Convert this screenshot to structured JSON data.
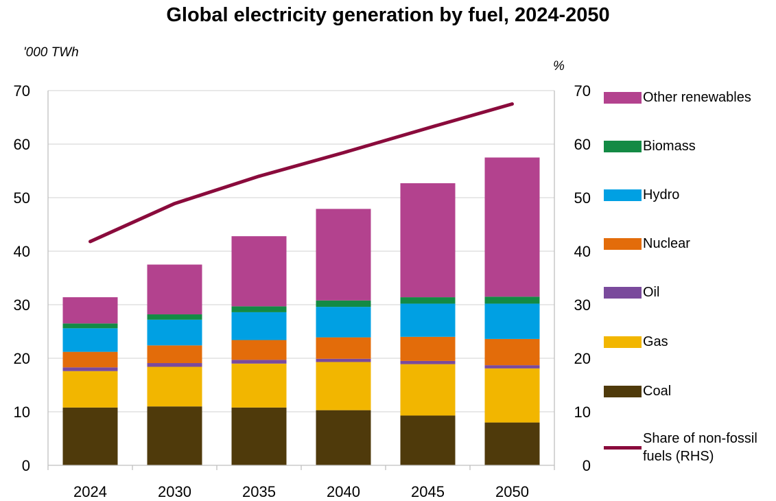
{
  "title": "Global electricity generation by fuel, 2024-2050",
  "unit_left": "'000 TWh",
  "unit_right": "%",
  "chart_data": {
    "type": "bar",
    "stacked": true,
    "categories": [
      "2024",
      "2030",
      "2035",
      "2040",
      "2045",
      "2050"
    ],
    "ylim": [
      0,
      70
    ],
    "yticks": [
      "0",
      "10",
      "20",
      "30",
      "40",
      "50",
      "60",
      "70"
    ],
    "y2lim": [
      0,
      70
    ],
    "y2ticks": [
      "0",
      "10",
      "20",
      "30",
      "40",
      "50",
      "60",
      "70"
    ],
    "ylabel": "'000 TWh",
    "y2label": "%",
    "grid": true,
    "legend_position": "right",
    "series": [
      {
        "name": "Coal",
        "color": "#4f3a0b",
        "values": [
          10.8,
          11.0,
          10.8,
          10.3,
          9.3,
          8.0
        ]
      },
      {
        "name": "Gas",
        "color": "#f2b600",
        "values": [
          6.8,
          7.4,
          8.2,
          9.0,
          9.6,
          10.1
        ]
      },
      {
        "name": "Oil",
        "color": "#7a4a9c",
        "values": [
          0.7,
          0.7,
          0.7,
          0.6,
          0.6,
          0.6
        ]
      },
      {
        "name": "Nuclear",
        "color": "#e36c0a",
        "values": [
          2.9,
          3.3,
          3.7,
          4.0,
          4.5,
          4.9
        ]
      },
      {
        "name": "Hydro",
        "color": "#00a0e3",
        "values": [
          4.4,
          4.8,
          5.2,
          5.7,
          6.2,
          6.6
        ]
      },
      {
        "name": "Biomass",
        "color": "#138a44",
        "values": [
          0.9,
          1.0,
          1.1,
          1.2,
          1.2,
          1.3
        ]
      },
      {
        "name": "Other renewables",
        "color": "#b3428e",
        "values": [
          4.9,
          9.3,
          13.1,
          17.1,
          21.3,
          26.0
        ]
      }
    ],
    "line_series": {
      "name": "Share of non-fossil fuels (RHS)",
      "color": "#8a0b3c",
      "axis": "right",
      "values": [
        41.8,
        48.9,
        54.0,
        58.4,
        63.0,
        67.5
      ]
    }
  },
  "legend": [
    {
      "label": "Other renewables",
      "color": "#b3428e",
      "kind": "box"
    },
    {
      "label": "Biomass",
      "color": "#138a44",
      "kind": "box"
    },
    {
      "label": "Hydro",
      "color": "#00a0e3",
      "kind": "box"
    },
    {
      "label": "Nuclear",
      "color": "#e36c0a",
      "kind": "box"
    },
    {
      "label": "Oil",
      "color": "#7a4a9c",
      "kind": "box"
    },
    {
      "label": "Gas",
      "color": "#f2b600",
      "kind": "box"
    },
    {
      "label": "Coal",
      "color": "#4f3a0b",
      "kind": "box"
    },
    {
      "label": "Share of non-fossil fuels (RHS)",
      "color": "#8a0b3c",
      "kind": "line"
    }
  ]
}
